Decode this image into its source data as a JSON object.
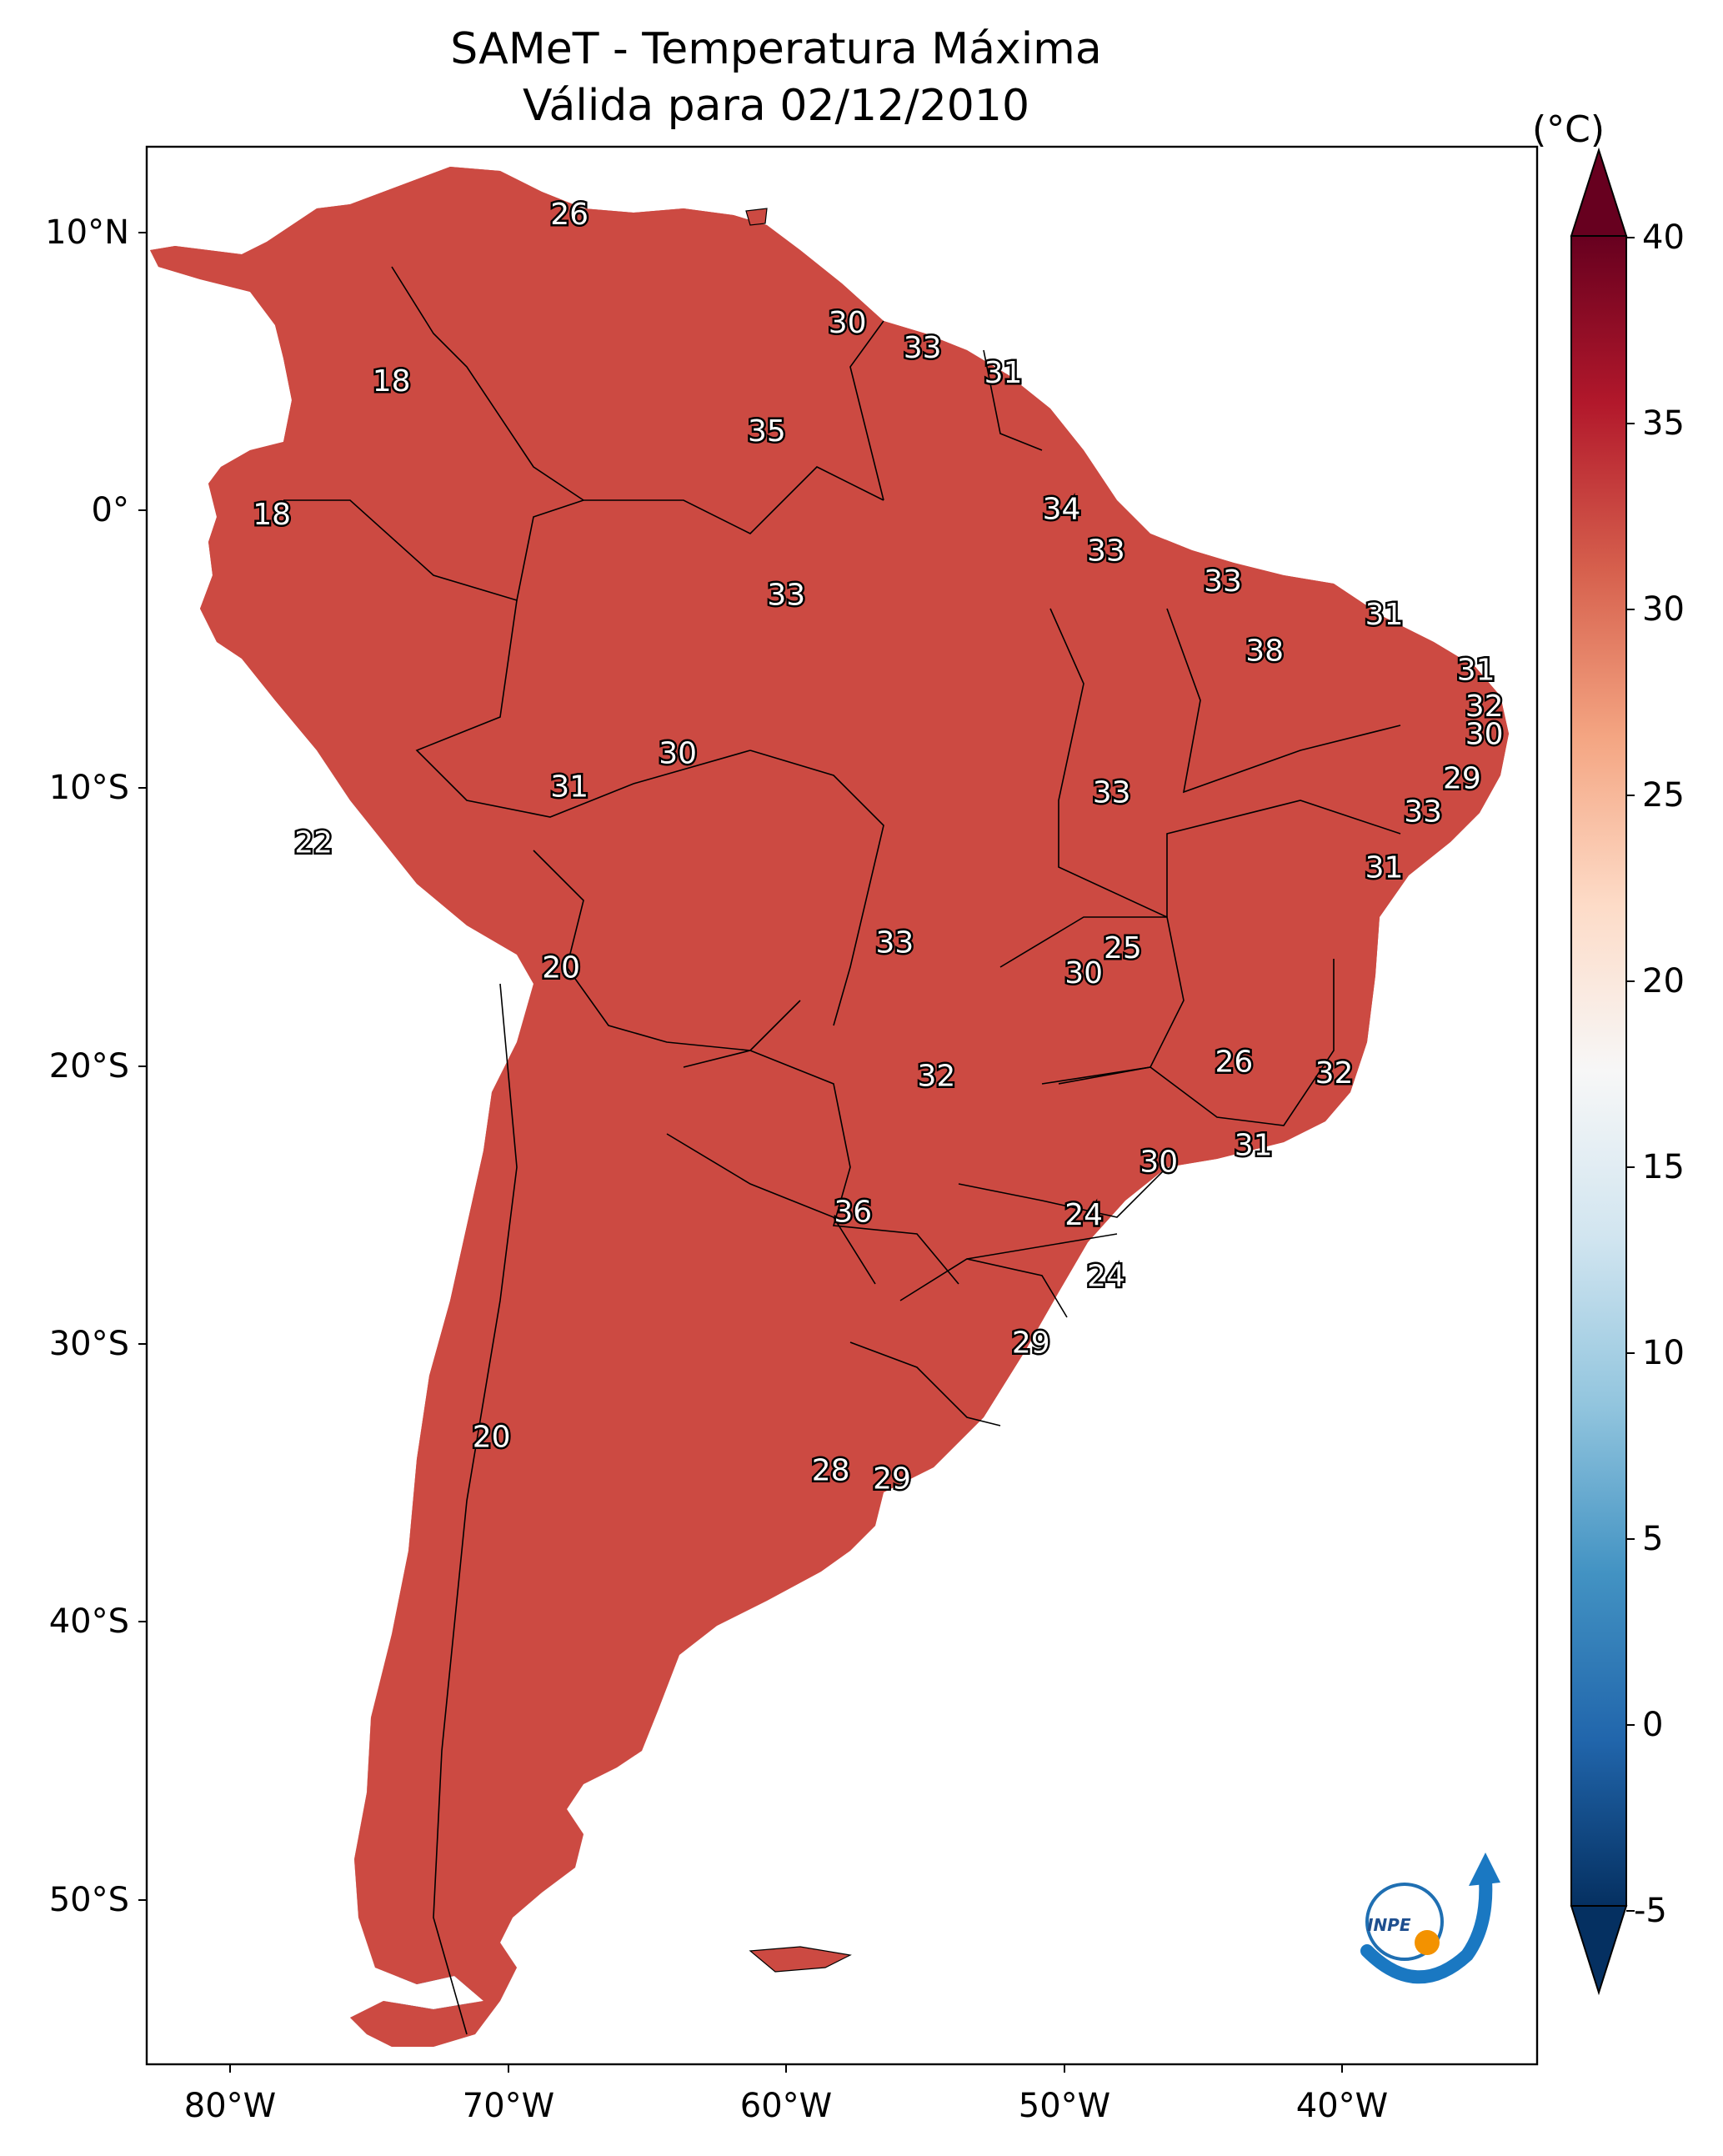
{
  "title": "SAMeT - Temperatura Máxima",
  "subtitle": "Válida para 02/12/2010",
  "colorbar": {
    "unit": "(°C)",
    "min": -5,
    "max": 40,
    "ticks": [
      "40",
      "35",
      "30",
      "25",
      "20",
      "15",
      "10",
      "5",
      "0",
      "-5"
    ],
    "colors": [
      "#053061",
      "#2166ac",
      "#4393c3",
      "#92c5de",
      "#d1e5f0",
      "#f7f7f7",
      "#fddbc7",
      "#f4a582",
      "#d6604d",
      "#b2182b",
      "#67001f"
    ]
  },
  "axes": {
    "lat_ticks": [
      "10°N",
      "0°",
      "10°S",
      "20°S",
      "30°S",
      "40°S",
      "50°S"
    ],
    "lon_ticks": [
      "80°W",
      "70°W",
      "60°W",
      "50°W",
      "40°W"
    ]
  },
  "logo": {
    "text": "INPE"
  },
  "chart_data": {
    "type": "map",
    "title": "SAMeT - Temperatura Máxima",
    "subtitle": "Válida para 02/12/2010",
    "variable": "Temperatura Máxima (°C)",
    "lon_range": [
      -83,
      -33
    ],
    "lat_range": [
      -56,
      13
    ],
    "city_labels": [
      {
        "lon": -67.8,
        "lat": 10.6,
        "value": "26"
      },
      {
        "lon": -57.8,
        "lat": 6.7,
        "value": "30"
      },
      {
        "lon": -55.1,
        "lat": 5.8,
        "value": "33"
      },
      {
        "lon": -52.2,
        "lat": 4.9,
        "value": "31"
      },
      {
        "lon": -74.2,
        "lat": 4.6,
        "value": "18"
      },
      {
        "lon": -60.7,
        "lat": 2.8,
        "value": "35"
      },
      {
        "lon": -50.1,
        "lat": 0.0,
        "value": "34"
      },
      {
        "lon": -78.5,
        "lat": -0.2,
        "value": "18"
      },
      {
        "lon": -48.5,
        "lat": -1.5,
        "value": "33"
      },
      {
        "lon": -44.3,
        "lat": -2.6,
        "value": "33"
      },
      {
        "lon": -60.0,
        "lat": -3.1,
        "value": "33"
      },
      {
        "lon": -38.5,
        "lat": -3.8,
        "value": "31"
      },
      {
        "lon": -42.8,
        "lat": -5.1,
        "value": "38"
      },
      {
        "lon": -35.2,
        "lat": -5.8,
        "value": "31"
      },
      {
        "lon": -34.9,
        "lat": -7.1,
        "value": "32"
      },
      {
        "lon": -34.9,
        "lat": -8.1,
        "value": "30"
      },
      {
        "lon": -63.9,
        "lat": -8.8,
        "value": "30"
      },
      {
        "lon": -35.7,
        "lat": -9.7,
        "value": "29"
      },
      {
        "lon": -67.8,
        "lat": -10.0,
        "value": "31"
      },
      {
        "lon": -48.3,
        "lat": -10.2,
        "value": "33"
      },
      {
        "lon": -37.1,
        "lat": -10.9,
        "value": "33"
      },
      {
        "lon": -38.5,
        "lat": -12.9,
        "value": "31"
      },
      {
        "lon": -77.0,
        "lat": -12.0,
        "value": "22"
      },
      {
        "lon": -47.9,
        "lat": -15.8,
        "value": "25"
      },
      {
        "lon": -56.1,
        "lat": -15.6,
        "value": "33"
      },
      {
        "lon": -68.1,
        "lat": -16.5,
        "value": "20"
      },
      {
        "lon": -49.3,
        "lat": -16.7,
        "value": "30"
      },
      {
        "lon": -43.9,
        "lat": -19.9,
        "value": "26"
      },
      {
        "lon": -40.3,
        "lat": -20.3,
        "value": "32"
      },
      {
        "lon": -54.6,
        "lat": -20.4,
        "value": "32"
      },
      {
        "lon": -43.2,
        "lat": -22.9,
        "value": "31"
      },
      {
        "lon": -46.6,
        "lat": -23.5,
        "value": "30"
      },
      {
        "lon": -49.3,
        "lat": -25.4,
        "value": "24"
      },
      {
        "lon": -57.6,
        "lat": -25.3,
        "value": "36"
      },
      {
        "lon": -48.5,
        "lat": -27.6,
        "value": "24"
      },
      {
        "lon": -51.2,
        "lat": -30.0,
        "value": "29"
      },
      {
        "lon": -70.6,
        "lat": -33.4,
        "value": "20"
      },
      {
        "lon": -58.4,
        "lat": -34.6,
        "value": "28"
      },
      {
        "lon": -56.2,
        "lat": -34.9,
        "value": "29"
      }
    ]
  }
}
